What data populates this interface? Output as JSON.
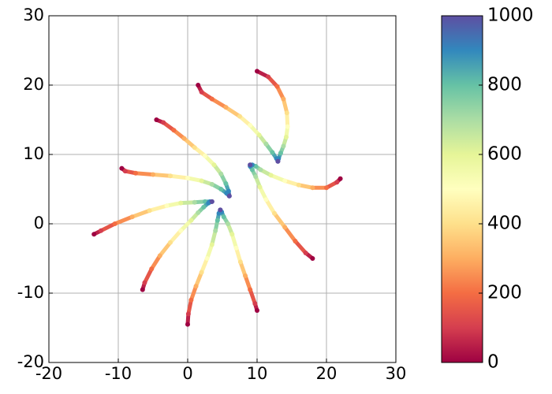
{
  "chart_data": {
    "type": "scatter",
    "colormap": "Spectral",
    "color_values": [
      0,
      100,
      200,
      300,
      400,
      500,
      600,
      700,
      800,
      900,
      1000
    ],
    "series": [
      {
        "x": [
          10,
          11.6,
          12.9,
          13.8,
          14.3,
          14.4,
          14.2,
          13.8,
          13.4,
          13.1,
          13
        ],
        "y": [
          22,
          21.2,
          19.8,
          18,
          16,
          14,
          12.5,
          11.2,
          10.2,
          9.4,
          9
        ]
      },
      {
        "x": [
          1.5,
          2,
          3.5,
          5.5,
          7.5,
          9,
          10.3,
          11.3,
          12.2,
          12.8,
          13
        ],
        "y": [
          20,
          19,
          18,
          16.8,
          15.5,
          14.2,
          12.8,
          11.5,
          10.3,
          9.4,
          9
        ]
      },
      {
        "x": [
          -4.5,
          -3.5,
          -2,
          -0.5,
          1,
          2.5,
          3.8,
          4.8,
          5.5,
          5.9,
          6
        ],
        "y": [
          15,
          14.6,
          13.5,
          12.3,
          11,
          9.8,
          8.5,
          7.2,
          5.8,
          4.7,
          4
        ]
      },
      {
        "x": [
          -9.5,
          -9,
          -7.5,
          -5,
          -2.5,
          0,
          2,
          3.5,
          4.8,
          5.6,
          6
        ],
        "y": [
          8,
          7.6,
          7.3,
          7.1,
          6.9,
          6.6,
          6.2,
          5.7,
          5,
          4.4,
          4
        ]
      },
      {
        "x": [
          -13.5,
          -12.5,
          -10.5,
          -8,
          -5.5,
          -3,
          -1,
          1,
          2.5,
          3.2,
          3.5
        ],
        "y": [
          -1.5,
          -1,
          0,
          1,
          1.9,
          2.6,
          3,
          3.1,
          3.2,
          3.2,
          3.2
        ]
      },
      {
        "x": [
          -6.5,
          -6.2,
          -5.2,
          -4,
          -2.5,
          -1,
          0.5,
          1.5,
          2.3,
          3,
          3.5
        ],
        "y": [
          -9.5,
          -8.5,
          -6.5,
          -4.6,
          -2.7,
          -1,
          0.5,
          1.6,
          2.4,
          3,
          3.2
        ]
      },
      {
        "x": [
          0,
          0.1,
          0.5,
          1.2,
          2,
          2.8,
          3.5,
          4,
          4.3,
          4.5,
          4.7
        ],
        "y": [
          -14.5,
          -13,
          -11,
          -9,
          -7,
          -5,
          -3,
          -1,
          0.5,
          1.5,
          2
        ]
      },
      {
        "x": [
          10,
          9.7,
          9,
          8.3,
          7.6,
          7,
          6.4,
          5.8,
          5.2,
          4.9,
          4.7
        ],
        "y": [
          -12.5,
          -11.5,
          -9.5,
          -7.5,
          -5.5,
          -3.5,
          -1.5,
          0,
          1,
          1.7,
          2
        ]
      },
      {
        "x": [
          22,
          21.5,
          20,
          18,
          16,
          14,
          12,
          10.5,
          9.8,
          9.3,
          9
        ],
        "y": [
          6.5,
          6,
          5.2,
          5.2,
          5.6,
          6.2,
          7,
          7.8,
          8.3,
          8.5,
          8.5
        ]
      },
      {
        "x": [
          18,
          17,
          15.5,
          14,
          12.5,
          11.3,
          10.4,
          9.8,
          9.3,
          9,
          9
        ],
        "y": [
          -5,
          -4.2,
          -2.5,
          -0.5,
          1.5,
          3.5,
          5.3,
          6.8,
          7.8,
          8.3,
          8.5
        ]
      }
    ],
    "xlim": [
      -20,
      30
    ],
    "xticks": [
      -20,
      -10,
      0,
      10,
      20,
      30
    ],
    "ylim": [
      -20,
      30
    ],
    "yticks": [
      -20,
      -10,
      0,
      10,
      20,
      30
    ],
    "grid": true,
    "clim": [
      0,
      1000
    ],
    "cticks": [
      0,
      200,
      400,
      600,
      800,
      1000
    ]
  }
}
